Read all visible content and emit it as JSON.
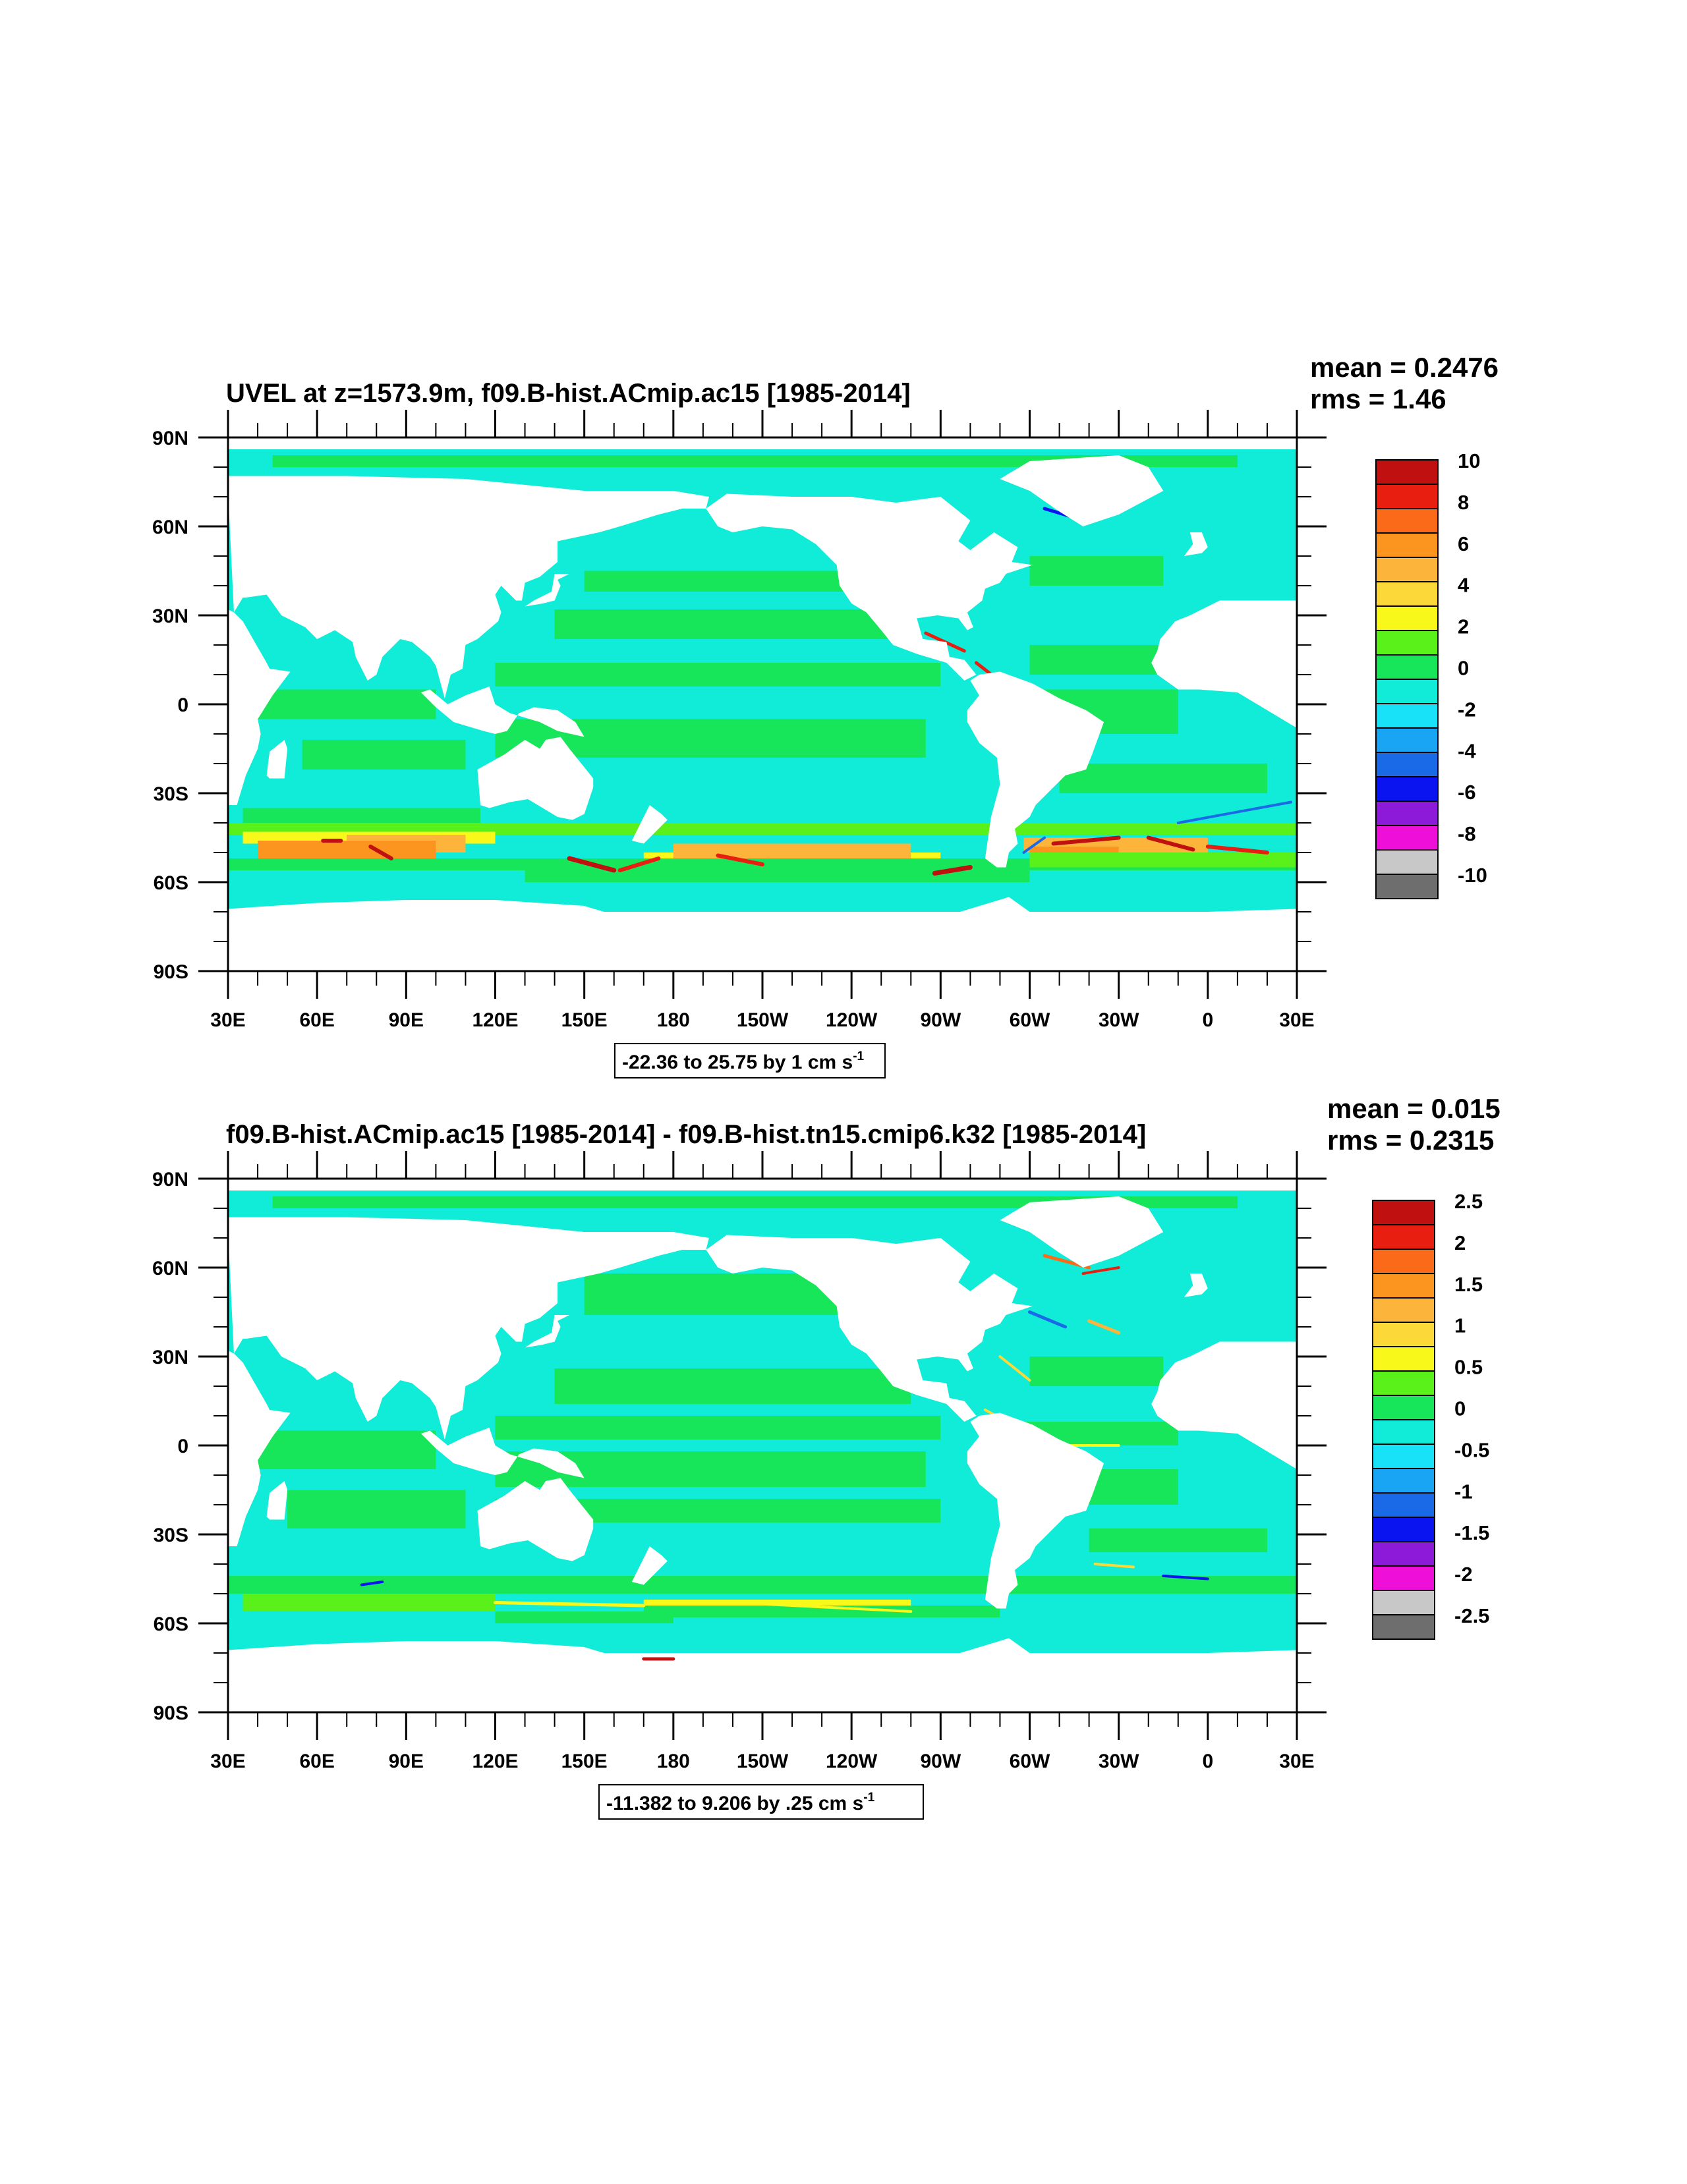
{
  "panels": [
    {
      "title": "UVEL at z=1573.9m, f09.B-hist.ACmip.ac15 [1985-2014]",
      "mean": "mean = 0.2476",
      "rms": "rms = 1.46",
      "contour_info": "-22.36 to 25.75 by 1 cm s",
      "contour_unit_sup": "-1",
      "colorbar_labels": [
        "10",
        "8",
        "6",
        "4",
        "2",
        "0",
        "-2",
        "-4",
        "-6",
        "-8",
        "-10"
      ],
      "variant": "field"
    },
    {
      "title": "f09.B-hist.ACmip.ac15 [1985-2014] - f09.B-hist.tn15.cmip6.k32 [1985-2014]",
      "mean": "mean = 0.015",
      "rms": "rms = 0.2315",
      "contour_info": "-11.382 to 9.206 by .25 cm s",
      "contour_unit_sup": "-1",
      "colorbar_labels": [
        "2.5",
        "2",
        "1.5",
        "1",
        "0.5",
        "0",
        "-0.5",
        "-1",
        "-1.5",
        "-2",
        "-2.5"
      ],
      "variant": "difference"
    }
  ],
  "x_ticks": [
    "30E",
    "60E",
    "90E",
    "120E",
    "150E",
    "180",
    "150W",
    "120W",
    "90W",
    "60W",
    "30W",
    "0",
    "30E"
  ],
  "y_ticks": [
    "90N",
    "60N",
    "30N",
    "0",
    "30S",
    "60S",
    "90S"
  ],
  "colors": {
    "levels": [
      "#6e6e6e",
      "#c8c8c8",
      "#ee10d8",
      "#8c1ad8",
      "#0a14f0",
      "#1a6ae8",
      "#1aa4f4",
      "#18e2f8",
      "#10ecd8",
      "#18e65a",
      "#5af01a",
      "#f8f81a",
      "#fcd838",
      "#fcb43a",
      "#fc9420",
      "#fa6a18",
      "#e81e10",
      "#c01010"
    ],
    "background": "#10ecd8",
    "land": "#ffffff"
  }
}
